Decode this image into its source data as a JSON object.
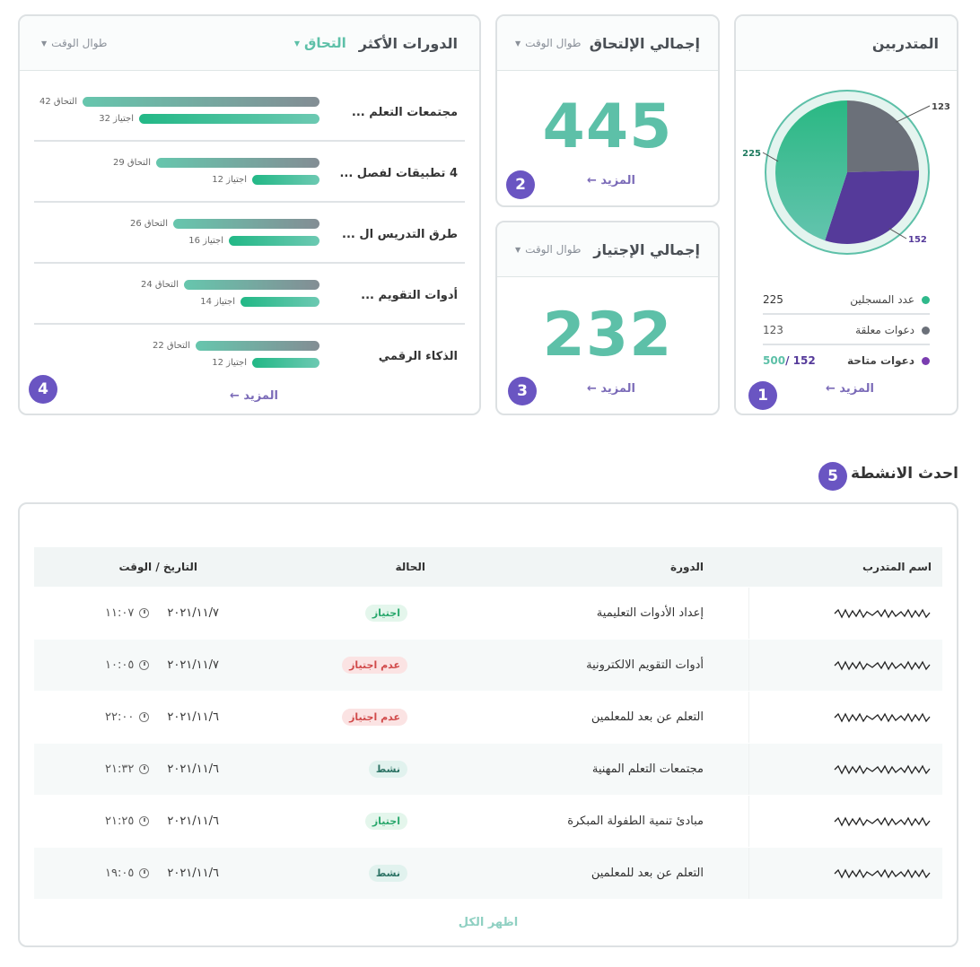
{
  "trainees": {
    "title": "المتدربين",
    "badge": "1",
    "more": "المزيد ←",
    "pie": {
      "slices": [
        {
          "name": "عدد المسجلين",
          "value": 225,
          "color": "#2fb98b"
        },
        {
          "name": "دعوات معلقة",
          "value": 123,
          "color": "#6b7079"
        },
        {
          "name": "دعوات متاحة",
          "value": 152,
          "color": "#553a9a"
        }
      ],
      "labels": [
        "225",
        "123",
        "152"
      ]
    },
    "legend": [
      {
        "label": "عدد المسجلين",
        "value": "225",
        "color": "#2fb98b"
      },
      {
        "label": "دعوات معلقة",
        "value": "123",
        "color": "#6b7079"
      },
      {
        "label": "دعوات متاحة",
        "value": "152",
        "total": "500",
        "sep": "/",
        "color": "#7a3db0"
      }
    ]
  },
  "enrollment": {
    "title": "إجمالي الإلتحاق",
    "filter": "طوال الوقت",
    "value": "445",
    "more": "المزيد ←",
    "badge": "2"
  },
  "passing": {
    "title": "إجمالي الإجتياز",
    "filter": "طوال الوقت",
    "value": "232",
    "more": "المزيد ←",
    "badge": "3"
  },
  "top_courses": {
    "title": "الدورات الأكثر",
    "metric": "التحاق",
    "filter": "طوال الوقت",
    "more": "المزيد ←",
    "badge": "4",
    "courses": [
      {
        "name": "مجتمعات التعلم ...",
        "enrolled": 42,
        "passed": 32,
        "enrolled_label": "42 التحاق",
        "passed_label": "32 اجتياز"
      },
      {
        "name": "4 تطبيقات لفصل ...",
        "enrolled": 29,
        "passed": 12,
        "enrolled_label": "29 التحاق",
        "passed_label": "12 اجتياز"
      },
      {
        "name": "طرق التدريس ال ...",
        "enrolled": 26,
        "passed": 16,
        "enrolled_label": "26 التحاق",
        "passed_label": "16 اجتياز"
      },
      {
        "name": "أدوات التقويم ...",
        "enrolled": 24,
        "passed": 14,
        "enrolled_label": "24 التحاق",
        "passed_label": "14 اجتياز"
      },
      {
        "name": "الذكاء الرقمي",
        "enrolled": 22,
        "passed": 12,
        "enrolled_label": "22 التحاق",
        "passed_label": "12 اجتياز"
      }
    ]
  },
  "activities": {
    "title": "احدث الانشطة",
    "badge": "5",
    "headers": {
      "name": "اسم المتدرب",
      "course": "الدورة",
      "status": "الحالة",
      "datetime": "التاريخ / الوقت"
    },
    "rows": [
      {
        "course": "إعداد الأدوات التعليمية",
        "status": "اجتياز",
        "status_type": "pass",
        "date": "٢٠٢١/١١/٧",
        "time": "١١:٠٧"
      },
      {
        "course": "أدوات التقويم الالكترونية",
        "status": "عدم اجتياز",
        "status_type": "fail",
        "date": "٢٠٢١/١١/٧",
        "time": "١٠:٠٥"
      },
      {
        "course": "التعلم عن بعد للمعلمين",
        "status": "عدم اجتياز",
        "status_type": "fail",
        "date": "٢٠٢١/١١/٦",
        "time": "٢٢:٠٠"
      },
      {
        "course": "مجتمعات التعلم المهنية",
        "status": "نشط",
        "status_type": "active",
        "date": "٢٠٢١/١١/٦",
        "time": "٢١:٣٢"
      },
      {
        "course": "مبادئ تنمية الطفولة المبكرة",
        "status": "اجتياز",
        "status_type": "pass",
        "date": "٢٠٢١/١١/٦",
        "time": "٢١:٢٥"
      },
      {
        "course": "التعلم عن بعد للمعلمين",
        "status": "نشط",
        "status_type": "active",
        "date": "٢٠٢١/١١/٦",
        "time": "١٩:٠٥"
      }
    ],
    "show_all": "اظهر الكل"
  }
}
